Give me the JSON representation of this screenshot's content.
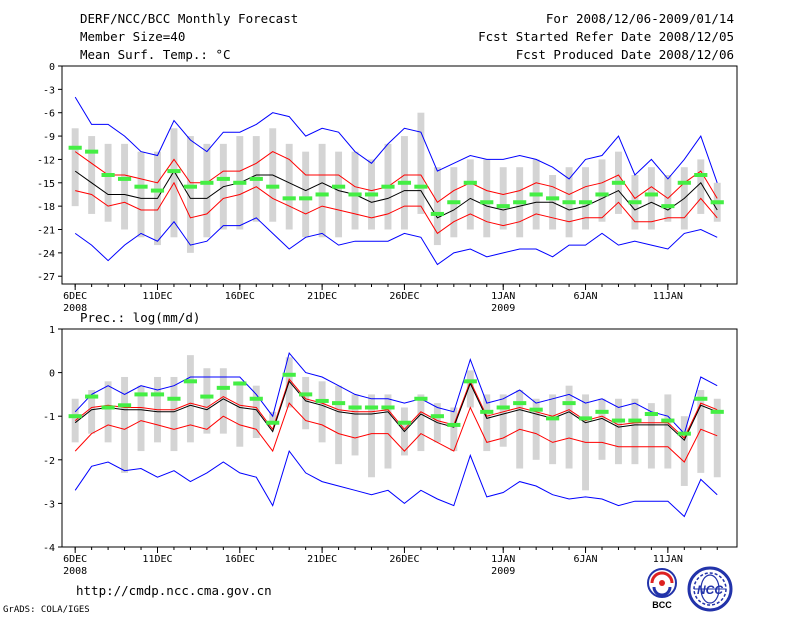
{
  "header": {
    "title": "DERF/NCC/BCC Monthly Forecast",
    "member_size": "Member Size=40",
    "variable": "Mean Surf. Temp.: °C",
    "period": "For 2008/12/06-2009/01/14",
    "started": "Fcst Started Refer Date 2008/12/05",
    "produced": "Fcst Produced Date 2008/12/06"
  },
  "footer": {
    "url": "http://cmdp.ncc.cma.gov.cn",
    "credit": "GrADS: COLA/IGES",
    "logo_bcc": "BCC",
    "logo_ncc": "NCC"
  },
  "colors": {
    "envelope": "#0000ff",
    "spread": "#ff0000",
    "mean": "#000000",
    "box": "#d4d4d4",
    "marker": "#44ee44"
  },
  "chart_data": [
    {
      "type": "line",
      "name": "temperature",
      "ylabel": "Mean Surf. Temp.: °C",
      "ylim": [
        -28,
        0
      ],
      "yticks": [
        0,
        -3,
        -6,
        -9,
        -12,
        -15,
        -18,
        -21,
        -24,
        -27
      ],
      "ytick_labels": [
        "0",
        "-3",
        "-6",
        "-9",
        "-12",
        "-15",
        "-18",
        "-21",
        "-24",
        "-27"
      ],
      "xticks": [
        {
          "day": 1,
          "label": "6DEC",
          "sub": "2008"
        },
        {
          "day": 6,
          "label": "11DEC",
          "sub": ""
        },
        {
          "day": 11,
          "label": "16DEC",
          "sub": ""
        },
        {
          "day": 16,
          "label": "21DEC",
          "sub": ""
        },
        {
          "day": 21,
          "label": "26DEC",
          "sub": ""
        },
        {
          "day": 27,
          "label": "1JAN",
          "sub": "2009"
        },
        {
          "day": 32,
          "label": "6JAN",
          "sub": ""
        },
        {
          "day": 37,
          "label": "11JAN",
          "sub": ""
        }
      ],
      "x": [
        1,
        2,
        3,
        4,
        5,
        6,
        7,
        8,
        9,
        10,
        11,
        12,
        13,
        14,
        15,
        16,
        17,
        18,
        19,
        20,
        21,
        22,
        23,
        24,
        25,
        26,
        27,
        28,
        29,
        30,
        31,
        32,
        33,
        34,
        35,
        36,
        37,
        38,
        39,
        40
      ],
      "series": [
        {
          "name": "ensemble max",
          "color_key": "envelope",
          "values": [
            -4,
            -7.5,
            -7.5,
            -9,
            -11,
            -11.5,
            -7,
            -9.5,
            -11,
            -8.5,
            -8.5,
            -7.5,
            -6,
            -6.5,
            -9,
            -8,
            -8.5,
            -11,
            -12.5,
            -10,
            -8,
            -8.5,
            -13.5,
            -12.5,
            -11.5,
            -12,
            -12,
            -11.5,
            -12,
            -13,
            -14.5,
            -12,
            -11.5,
            -9,
            -14,
            -12,
            -14.5,
            -12,
            -9,
            -15
          ]
        },
        {
          "name": "upper spread",
          "color_key": "spread",
          "values": [
            -11,
            -12.5,
            -14,
            -14,
            -14.5,
            -15,
            -12,
            -15,
            -15,
            -13.5,
            -13.5,
            -12.5,
            -11,
            -12,
            -14,
            -14,
            -14,
            -15.5,
            -16,
            -15.5,
            -14,
            -14,
            -17.5,
            -16,
            -15,
            -16,
            -16.5,
            -16,
            -15,
            -15.5,
            -16.5,
            -15.5,
            -15,
            -14,
            -17,
            -15.5,
            -17,
            -15,
            -13.5,
            -17
          ]
        },
        {
          "name": "ensemble mean",
          "color_key": "mean",
          "values": [
            -13.5,
            -15,
            -16.5,
            -16.5,
            -17,
            -17,
            -13.5,
            -17,
            -17,
            -15.5,
            -15,
            -14,
            -14,
            -15,
            -16,
            -15,
            -16,
            -16.5,
            -17.5,
            -17,
            -16,
            -16,
            -19.5,
            -18.5,
            -17,
            -18,
            -18.5,
            -18,
            -17.5,
            -17.5,
            -18.5,
            -18,
            -17,
            -16,
            -18.5,
            -17.5,
            -18.5,
            -17,
            -15,
            -18.5
          ]
        },
        {
          "name": "lower spread",
          "color_key": "spread",
          "values": [
            -16,
            -16.5,
            -18,
            -17.5,
            -18.5,
            -18.5,
            -15,
            -19.5,
            -19,
            -17,
            -16.5,
            -15.5,
            -17,
            -18,
            -19,
            -18,
            -18.5,
            -19,
            -19.5,
            -19,
            -18,
            -18,
            -21.5,
            -20,
            -19,
            -20,
            -20.5,
            -20,
            -19,
            -19.5,
            -20,
            -19.5,
            -19.5,
            -17.5,
            -20,
            -20,
            -19.5,
            -19.5,
            -17,
            -19.5
          ]
        },
        {
          "name": "ensemble min",
          "color_key": "envelope",
          "values": [
            -21.5,
            -23,
            -25,
            -23,
            -21.5,
            -22.5,
            -20,
            -23,
            -22.5,
            -20.5,
            -20.5,
            -19.5,
            -21.5,
            -23.5,
            -22,
            -21.5,
            -23,
            -22.5,
            -22.5,
            -22.5,
            -21.5,
            -22,
            -25.5,
            -24,
            -23.5,
            -24.5,
            -24,
            -23.5,
            -23.5,
            -24.5,
            -23,
            -23,
            -21.5,
            -23,
            -22.5,
            -23,
            -23.5,
            -21.5,
            -21,
            -22
          ]
        }
      ],
      "boxes": {
        "lows": [
          -18,
          -19,
          -20,
          -21,
          -22,
          -23,
          -22,
          -24,
          -22,
          -21,
          -21,
          -20,
          -20,
          -21,
          -22,
          -22,
          -22,
          -21,
          -21,
          -21,
          -21,
          -19,
          -23,
          -22,
          -21,
          -22,
          -21,
          -22,
          -21,
          -21,
          -22,
          -21,
          -20,
          -19,
          -21,
          -21,
          -20,
          -21,
          -19,
          -20
        ],
        "highs": [
          -8,
          -9,
          -10,
          -10,
          -11,
          -11,
          -8,
          -9,
          -10,
          -10,
          -9,
          -9,
          -8,
          -10,
          -11,
          -10,
          -11,
          -11,
          -12,
          -10,
          -9,
          -6,
          -13,
          -13,
          -12,
          -12,
          -13,
          -13,
          -12,
          -14,
          -13,
          -13,
          -12,
          -11,
          -14,
          -13,
          -14,
          -13,
          -12,
          -15
        ],
        "markers": [
          -10.5,
          -11,
          -14,
          -14.5,
          -15.5,
          -16,
          -13.5,
          -15.5,
          -15,
          -14.5,
          -15,
          -14.5,
          -15.5,
          -17,
          -17,
          -16.5,
          -15.5,
          -16.5,
          -16.5,
          -15.5,
          -15,
          -15.5,
          -19,
          -17.5,
          -15,
          -17.5,
          -18,
          -17.5,
          -16.5,
          -17,
          -17.5,
          -17.5,
          -16.5,
          -15,
          -17.5,
          -16.5,
          -18,
          -15,
          -14,
          -17.5
        ]
      }
    },
    {
      "type": "line",
      "name": "precipitation",
      "ylabel": "Prec.: log(mm/d)",
      "ylim": [
        -4,
        1
      ],
      "yticks": [
        1,
        0,
        -1,
        -2,
        -3,
        -4
      ],
      "ytick_labels": [
        "1",
        "0",
        "-1",
        "-2",
        "-3",
        "-4"
      ],
      "xticks": [
        {
          "day": 1,
          "label": "6DEC",
          "sub": "2008"
        },
        {
          "day": 6,
          "label": "11DEC",
          "sub": ""
        },
        {
          "day": 11,
          "label": "16DEC",
          "sub": ""
        },
        {
          "day": 16,
          "label": "21DEC",
          "sub": ""
        },
        {
          "day": 21,
          "label": "26DEC",
          "sub": ""
        },
        {
          "day": 27,
          "label": "1JAN",
          "sub": "2009"
        },
        {
          "day": 32,
          "label": "6JAN",
          "sub": ""
        },
        {
          "day": 37,
          "label": "11JAN",
          "sub": ""
        }
      ],
      "x": [
        1,
        2,
        3,
        4,
        5,
        6,
        7,
        8,
        9,
        10,
        11,
        12,
        13,
        14,
        15,
        16,
        17,
        18,
        19,
        20,
        21,
        22,
        23,
        24,
        25,
        26,
        27,
        28,
        29,
        30,
        31,
        32,
        33,
        34,
        35,
        36,
        37,
        38,
        39,
        40
      ],
      "series": [
        {
          "name": "ensemble max",
          "color_key": "envelope",
          "values": [
            -0.9,
            -0.5,
            -0.3,
            -0.5,
            -0.3,
            -0.4,
            -0.3,
            -0.1,
            -0.1,
            -0.1,
            -0.1,
            -0.5,
            -1,
            0.45,
            0,
            -0.1,
            -0.3,
            -0.5,
            -0.6,
            -0.6,
            -0.7,
            -0.6,
            -0.8,
            -0.9,
            0.3,
            -0.7,
            -0.6,
            -0.4,
            -0.7,
            -0.6,
            -0.5,
            -0.7,
            -0.6,
            -0.8,
            -0.7,
            -0.9,
            -1,
            -1.4,
            -0.1,
            -0.3
          ]
        },
        {
          "name": "upper spread",
          "color_key": "spread",
          "values": [
            -1.1,
            -0.8,
            -0.75,
            -0.8,
            -0.8,
            -0.85,
            -0.85,
            -0.7,
            -0.8,
            -0.55,
            -0.75,
            -0.8,
            -1.3,
            -0.15,
            -0.6,
            -0.7,
            -0.85,
            -0.9,
            -0.9,
            -0.85,
            -1.3,
            -0.9,
            -1.1,
            -1.2,
            -0.2,
            -1,
            -0.9,
            -0.8,
            -0.9,
            -1,
            -0.85,
            -1.1,
            -1,
            -1.2,
            -1.15,
            -1.15,
            -1.15,
            -1.5,
            -0.7,
            -0.85
          ]
        },
        {
          "name": "ensemble mean",
          "color_key": "mean",
          "values": [
            -1.15,
            -0.85,
            -0.8,
            -0.85,
            -0.85,
            -0.9,
            -0.9,
            -0.75,
            -0.85,
            -0.6,
            -0.8,
            -0.85,
            -1.35,
            -0.2,
            -0.65,
            -0.75,
            -0.9,
            -0.95,
            -0.95,
            -0.9,
            -1.35,
            -0.95,
            -1.15,
            -1.25,
            -0.25,
            -1.05,
            -0.95,
            -0.85,
            -0.95,
            -1.05,
            -0.9,
            -1.15,
            -1.05,
            -1.25,
            -1.2,
            -1.2,
            -1.2,
            -1.55,
            -0.75,
            -0.9
          ]
        },
        {
          "name": "lower spread",
          "color_key": "spread",
          "values": [
            -1.8,
            -1.4,
            -1.2,
            -1.3,
            -1.1,
            -1.2,
            -1.3,
            -1.2,
            -1.3,
            -1,
            -1.2,
            -1.3,
            -1.8,
            -0.7,
            -1.1,
            -1.2,
            -1.4,
            -1.5,
            -1.4,
            -1.4,
            -1.8,
            -1.4,
            -1.6,
            -1.8,
            -0.8,
            -1.6,
            -1.5,
            -1.3,
            -1.4,
            -1.6,
            -1.5,
            -1.6,
            -1.6,
            -1.7,
            -1.7,
            -1.7,
            -1.7,
            -2.05,
            -1.3,
            -1.45
          ]
        },
        {
          "name": "ensemble min",
          "color_key": "envelope",
          "values": [
            -2.7,
            -2.15,
            -2.05,
            -2.25,
            -2.2,
            -2.4,
            -2.25,
            -2.5,
            -2.3,
            -2.05,
            -2.3,
            -2.4,
            -3.05,
            -1.8,
            -2.3,
            -2.5,
            -2.6,
            -2.7,
            -2.8,
            -2.7,
            -3,
            -2.7,
            -2.9,
            -3.05,
            -1.9,
            -2.85,
            -2.75,
            -2.5,
            -2.6,
            -2.8,
            -2.9,
            -2.85,
            -2.9,
            -3.05,
            -2.95,
            -2.95,
            -2.95,
            -3.3,
            -2.45,
            -2.8
          ]
        }
      ],
      "boxes": {
        "lows": [
          -1.6,
          -1.4,
          -1.6,
          -2.3,
          -1.8,
          -1.6,
          -1.8,
          -1.6,
          -1.4,
          -1.4,
          -1.7,
          -1.5,
          -1.2,
          -0.8,
          -1.3,
          -1.6,
          -2.1,
          -1.9,
          -2.4,
          -2.2,
          -1.9,
          -1.8,
          -1.6,
          -1.8,
          -0.8,
          -1.8,
          -1.7,
          -2.2,
          -2.0,
          -2.1,
          -2.2,
          -2.7,
          -2.0,
          -2.1,
          -2.1,
          -2.2,
          -2.2,
          -2.6,
          -2.3,
          -2.4
        ],
        "highs": [
          -0.6,
          -0.4,
          -0.2,
          -0.1,
          -0.3,
          -0.1,
          -0.1,
          0.4,
          0.1,
          0.1,
          -0.2,
          -0.3,
          -0.9,
          0.35,
          -0.1,
          -0.2,
          -0.3,
          -0.5,
          -0.5,
          -0.5,
          -0.8,
          -0.5,
          -0.7,
          -0.8,
          0.05,
          -0.5,
          -0.5,
          -0.4,
          -0.6,
          -0.5,
          -0.3,
          -0.5,
          -0.6,
          -0.6,
          -0.6,
          -0.7,
          -0.5,
          -1.0,
          -0.4,
          -0.6
        ],
        "markers": [
          -1,
          -0.55,
          -0.8,
          -0.75,
          -0.5,
          -0.5,
          -0.6,
          -0.2,
          -0.55,
          -0.35,
          -0.25,
          -0.6,
          -1.15,
          -0.05,
          -0.5,
          -0.65,
          -0.7,
          -0.8,
          -0.8,
          -0.8,
          -1.15,
          -0.6,
          -1,
          -1.2,
          -0.2,
          -0.9,
          -0.8,
          -0.7,
          -0.85,
          -1.05,
          -0.7,
          -1.05,
          -0.9,
          -1.1,
          -1.1,
          -0.95,
          -1.1,
          -1.4,
          -0.6,
          -0.9
        ]
      }
    }
  ]
}
